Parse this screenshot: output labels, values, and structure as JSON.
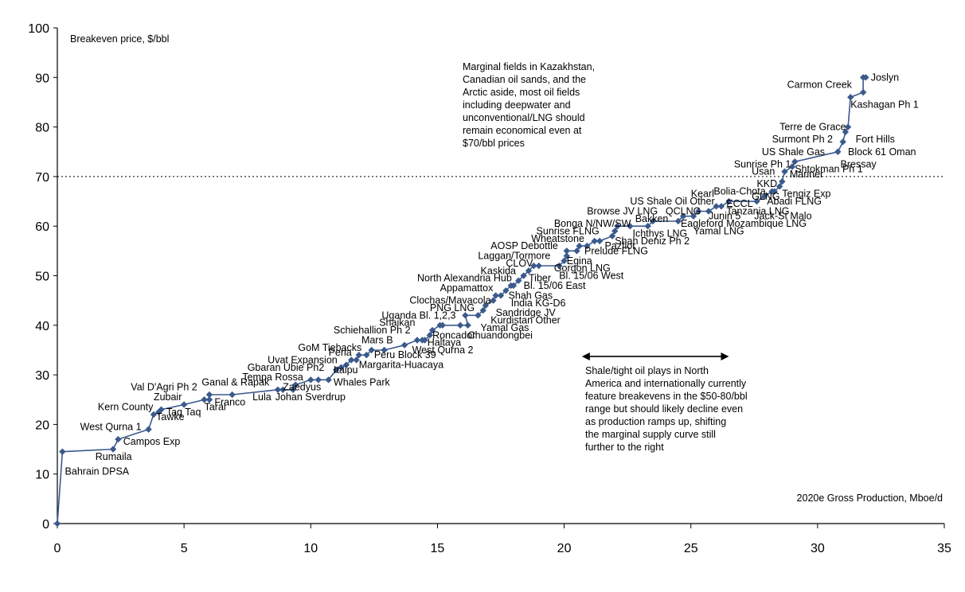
{
  "chart_data": {
    "type": "line",
    "ylabel": "Breakeven price, $/bbl",
    "xlabel": "2020e Gross Production, Mboe/d",
    "xlim": [
      0,
      35
    ],
    "ylim": [
      0,
      100
    ],
    "xticks": [
      "0",
      "5",
      "10",
      "15",
      "20",
      "25",
      "30",
      "35"
    ],
    "yticks": [
      "0",
      "10",
      "20",
      "30",
      "40",
      "50",
      "60",
      "70",
      "80",
      "90",
      "100"
    ],
    "grid": false,
    "reference_line": {
      "y": 70,
      "style": "dotted"
    },
    "series": [
      {
        "color": "#3b5a8c",
        "marker": "diamond",
        "points": [
          {
            "x": 0.0,
            "y": 0
          },
          {
            "x": 0.2,
            "y": 14.5
          },
          {
            "x": 2.2,
            "y": 15
          },
          {
            "x": 2.4,
            "y": 17
          },
          {
            "x": 3.6,
            "y": 19
          },
          {
            "x": 3.8,
            "y": 22
          },
          {
            "x": 4.0,
            "y": 22.5
          },
          {
            "x": 4.1,
            "y": 23
          },
          {
            "x": 5.0,
            "y": 24
          },
          {
            "x": 5.8,
            "y": 25
          },
          {
            "x": 6.0,
            "y": 25
          },
          {
            "x": 6.0,
            "y": 26
          },
          {
            "x": 6.9,
            "y": 26
          },
          {
            "x": 8.7,
            "y": 27
          },
          {
            "x": 8.9,
            "y": 27
          },
          {
            "x": 9.3,
            "y": 27
          },
          {
            "x": 9.4,
            "y": 28
          },
          {
            "x": 10.0,
            "y": 29
          },
          {
            "x": 10.3,
            "y": 29
          },
          {
            "x": 10.7,
            "y": 29
          },
          {
            "x": 11.0,
            "y": 31
          },
          {
            "x": 11.2,
            "y": 31.5
          },
          {
            "x": 11.4,
            "y": 32
          },
          {
            "x": 11.6,
            "y": 33
          },
          {
            "x": 11.8,
            "y": 33
          },
          {
            "x": 11.9,
            "y": 34
          },
          {
            "x": 12.2,
            "y": 34
          },
          {
            "x": 12.4,
            "y": 35
          },
          {
            "x": 12.9,
            "y": 35
          },
          {
            "x": 13.7,
            "y": 36
          },
          {
            "x": 14.2,
            "y": 37
          },
          {
            "x": 14.4,
            "y": 37
          },
          {
            "x": 14.5,
            "y": 37
          },
          {
            "x": 14.7,
            "y": 38
          },
          {
            "x": 14.8,
            "y": 39
          },
          {
            "x": 15.1,
            "y": 40
          },
          {
            "x": 15.2,
            "y": 40
          },
          {
            "x": 15.9,
            "y": 40
          },
          {
            "x": 16.2,
            "y": 40
          },
          {
            "x": 16.1,
            "y": 42
          },
          {
            "x": 16.6,
            "y": 42
          },
          {
            "x": 16.8,
            "y": 43
          },
          {
            "x": 16.9,
            "y": 44
          },
          {
            "x": 17.2,
            "y": 45
          },
          {
            "x": 17.3,
            "y": 46
          },
          {
            "x": 17.5,
            "y": 46
          },
          {
            "x": 17.7,
            "y": 47
          },
          {
            "x": 17.9,
            "y": 48
          },
          {
            "x": 18.0,
            "y": 48
          },
          {
            "x": 18.2,
            "y": 49
          },
          {
            "x": 18.4,
            "y": 50
          },
          {
            "x": 18.6,
            "y": 51
          },
          {
            "x": 18.8,
            "y": 52
          },
          {
            "x": 19.0,
            "y": 52
          },
          {
            "x": 19.8,
            "y": 52
          },
          {
            "x": 20.0,
            "y": 53
          },
          {
            "x": 20.1,
            "y": 54
          },
          {
            "x": 20.1,
            "y": 55
          },
          {
            "x": 20.5,
            "y": 55
          },
          {
            "x": 20.6,
            "y": 56
          },
          {
            "x": 20.9,
            "y": 56
          },
          {
            "x": 21.2,
            "y": 57
          },
          {
            "x": 21.4,
            "y": 57
          },
          {
            "x": 21.9,
            "y": 58
          },
          {
            "x": 22.0,
            "y": 59
          },
          {
            "x": 22.1,
            "y": 60
          },
          {
            "x": 22.6,
            "y": 60
          },
          {
            "x": 23.3,
            "y": 60
          },
          {
            "x": 23.5,
            "y": 61
          },
          {
            "x": 24.5,
            "y": 61
          },
          {
            "x": 24.7,
            "y": 62
          },
          {
            "x": 25.1,
            "y": 62
          },
          {
            "x": 25.3,
            "y": 63
          },
          {
            "x": 25.7,
            "y": 63
          },
          {
            "x": 26.0,
            "y": 64
          },
          {
            "x": 26.2,
            "y": 64
          },
          {
            "x": 26.5,
            "y": 65
          },
          {
            "x": 27.6,
            "y": 65
          },
          {
            "x": 27.9,
            "y": 66
          },
          {
            "x": 28.2,
            "y": 67
          },
          {
            "x": 28.3,
            "y": 67
          },
          {
            "x": 28.5,
            "y": 68
          },
          {
            "x": 28.6,
            "y": 69
          },
          {
            "x": 28.7,
            "y": 71
          },
          {
            "x": 29.0,
            "y": 72
          },
          {
            "x": 29.1,
            "y": 73
          },
          {
            "x": 30.8,
            "y": 75
          },
          {
            "x": 31.0,
            "y": 77
          },
          {
            "x": 31.1,
            "y": 79
          },
          {
            "x": 31.2,
            "y": 80
          },
          {
            "x": 31.3,
            "y": 86
          },
          {
            "x": 31.8,
            "y": 87
          },
          {
            "x": 31.8,
            "y": 90
          },
          {
            "x": 31.9,
            "y": 90
          }
        ]
      }
    ],
    "point_labels": [
      {
        "text": "Bahrain DPSA",
        "x": 0.3,
        "y": 10.5
      },
      {
        "text": "Rumaila",
        "x": 1.5,
        "y": 13.5
      },
      {
        "text": "Campos Exp",
        "x": 2.6,
        "y": 16.5
      },
      {
        "text": "West Qurna 1",
        "x": 0.9,
        "y": 19.5
      },
      {
        "text": "Tawke",
        "x": 3.9,
        "y": 21.5
      },
      {
        "text": "Kern County",
        "x": 1.6,
        "y": 23.5
      },
      {
        "text": "Taq Taq",
        "x": 4.3,
        "y": 22.5
      },
      {
        "text": "Zubair",
        "x": 3.8,
        "y": 25.5
      },
      {
        "text": "Val D'Agri Ph 2",
        "x": 2.9,
        "y": 27.5
      },
      {
        "text": "Taral",
        "x": 5.8,
        "y": 23.5
      },
      {
        "text": "Franco",
        "x": 6.2,
        "y": 24.5
      },
      {
        "text": "Ganal & Rapak",
        "x": 5.7,
        "y": 28.5
      },
      {
        "text": "Lula",
        "x": 7.7,
        "y": 25.5
      },
      {
        "text": "Johan Sverdrup",
        "x": 8.6,
        "y": 25.5
      },
      {
        "text": "Tempa Rossa",
        "x": 7.3,
        "y": 29.5
      },
      {
        "text": "Zaedyus",
        "x": 8.9,
        "y": 27.5
      },
      {
        "text": "Gbaran Ubie Ph2",
        "x": 7.5,
        "y": 31.5
      },
      {
        "text": "Whales Park",
        "x": 10.9,
        "y": 28.5
      },
      {
        "text": "Itaipu",
        "x": 10.9,
        "y": 31.0
      },
      {
        "text": "Uvat Expansion",
        "x": 8.3,
        "y": 33.0
      },
      {
        "text": "Margarita-Huacaya",
        "x": 11.9,
        "y": 32.0
      },
      {
        "text": "Perla",
        "x": 10.7,
        "y": 34.5
      },
      {
        "text": "GoM Tiebacks",
        "x": 9.5,
        "y": 35.5
      },
      {
        "text": "Peru Block 39",
        "x": 12.5,
        "y": 34.0
      },
      {
        "text": "Mars B",
        "x": 12.0,
        "y": 37.0
      },
      {
        "text": "West Qurna 2",
        "x": 14.0,
        "y": 35.0
      },
      {
        "text": "Haltaya",
        "x": 14.6,
        "y": 36.5
      },
      {
        "text": "Roncador",
        "x": 14.8,
        "y": 38.0
      },
      {
        "text": "Schiehallion Ph 2",
        "x": 10.9,
        "y": 39.0
      },
      {
        "text": "Chuandongbei",
        "x": 16.2,
        "y": 38.0
      },
      {
        "text": "Shaikan",
        "x": 12.7,
        "y": 40.5
      },
      {
        "text": "Yamal Gas",
        "x": 16.7,
        "y": 39.5
      },
      {
        "text": "Uganda Bl. 1,2,3",
        "x": 12.8,
        "y": 42.0
      },
      {
        "text": "Kurdistan Other",
        "x": 17.1,
        "y": 41.0
      },
      {
        "text": "PNG LNG",
        "x": 14.7,
        "y": 43.5
      },
      {
        "text": "Sandridge JV",
        "x": 17.3,
        "y": 42.5
      },
      {
        "text": "Clochas/Mavacola",
        "x": 13.9,
        "y": 45.0
      },
      {
        "text": "India KG-D6",
        "x": 17.9,
        "y": 44.5
      },
      {
        "text": "Shah Gas",
        "x": 17.8,
        "y": 46.0
      },
      {
        "text": "Appamattox",
        "x": 15.1,
        "y": 47.5
      },
      {
        "text": "Bl. 15/06 East",
        "x": 18.4,
        "y": 48.0
      },
      {
        "text": "North Alexandria Hub",
        "x": 14.2,
        "y": 49.5
      },
      {
        "text": "Tiber",
        "x": 18.6,
        "y": 49.5
      },
      {
        "text": "Bl. 15/06 West",
        "x": 19.8,
        "y": 50.0
      },
      {
        "text": "Kaskida",
        "x": 16.7,
        "y": 51.0
      },
      {
        "text": "Gorgon LNG",
        "x": 19.6,
        "y": 51.5
      },
      {
        "text": "CLOV",
        "x": 17.7,
        "y": 52.5
      },
      {
        "text": "Egina",
        "x": 20.1,
        "y": 53.0
      },
      {
        "text": "Laggan/Tormore",
        "x": 16.6,
        "y": 54.0
      },
      {
        "text": "Prelude FLNG",
        "x": 20.8,
        "y": 55.0
      },
      {
        "text": "AOSP Debottle",
        "x": 17.1,
        "y": 56.0
      },
      {
        "text": "Pazflor",
        "x": 21.6,
        "y": 56.0
      },
      {
        "text": "Wheatstone",
        "x": 18.7,
        "y": 57.5
      },
      {
        "text": "Shah Deniz Ph 2",
        "x": 22.0,
        "y": 57.0
      },
      {
        "text": "Sunrise FLNG",
        "x": 18.9,
        "y": 59.0
      },
      {
        "text": "Bonga N/NW/SW",
        "x": 19.6,
        "y": 60.5
      },
      {
        "text": "Ichthys LNG",
        "x": 22.7,
        "y": 58.5
      },
      {
        "text": "Bakken",
        "x": 22.8,
        "y": 61.5
      },
      {
        "text": "Browse JV LNG",
        "x": 20.9,
        "y": 63.0
      },
      {
        "text": "Yamal LNG",
        "x": 25.1,
        "y": 59.0
      },
      {
        "text": "Eagleford",
        "x": 24.6,
        "y": 60.5
      },
      {
        "text": "QCLNG",
        "x": 24.0,
        "y": 63.0
      },
      {
        "text": "Mozambique LNG",
        "x": 26.4,
        "y": 60.5
      },
      {
        "text": "Junin 5",
        "x": 25.7,
        "y": 62.0
      },
      {
        "text": "US Shale Oil Other",
        "x": 22.6,
        "y": 65.0
      },
      {
        "text": "Tanzania LNG",
        "x": 26.4,
        "y": 63.0
      },
      {
        "text": "Jack-St Malo",
        "x": 27.5,
        "y": 62.0
      },
      {
        "text": "ECCL",
        "x": 26.4,
        "y": 64.5
      },
      {
        "text": "Kearl",
        "x": 25.0,
        "y": 66.5
      },
      {
        "text": "GLNG",
        "x": 27.4,
        "y": 66.0
      },
      {
        "text": "Abadi FLNG",
        "x": 28.0,
        "y": 65.0
      },
      {
        "text": "Bolia-Chota",
        "x": 25.9,
        "y": 67.0
      },
      {
        "text": "Tengiz Exp",
        "x": 28.6,
        "y": 66.5
      },
      {
        "text": "KKD",
        "x": 27.6,
        "y": 68.5
      },
      {
        "text": "Mariner",
        "x": 28.9,
        "y": 70.5
      },
      {
        "text": "Usan",
        "x": 27.4,
        "y": 71.0
      },
      {
        "text": "Shtokman Ph 1",
        "x": 29.1,
        "y": 71.5
      },
      {
        "text": "Sunrise Ph 1",
        "x": 26.7,
        "y": 72.5
      },
      {
        "text": "Bressay",
        "x": 30.9,
        "y": 72.5
      },
      {
        "text": "US Shale Gas",
        "x": 27.8,
        "y": 75.0
      },
      {
        "text": "Block 61 Oman",
        "x": 31.2,
        "y": 75.0
      },
      {
        "text": "Surmont Ph 2",
        "x": 28.2,
        "y": 77.5
      },
      {
        "text": "Fort Hills",
        "x": 31.5,
        "y": 77.5
      },
      {
        "text": "Terre de Grace",
        "x": 28.5,
        "y": 80.0
      },
      {
        "text": "Kashagan Ph 1",
        "x": 31.3,
        "y": 84.5
      },
      {
        "text": "Carmon Creek",
        "x": 28.8,
        "y": 88.5
      },
      {
        "text": "Joslyn",
        "x": 32.1,
        "y": 90.0
      }
    ]
  },
  "annotations": {
    "top_note": "Marginal fields in Kazakhstan,\nCanadian oil sands, and the\nArctic aside, most oil fields\nincluding deepwater and\nunconventional/LNG should\nremain economical even at\n$70/bbl prices",
    "bottom_note": "Shale/tight oil plays in North\nAmerica and internationally currently\nfeature breakevens in the $50-80/bbl\nrange but should likely decline even\nas production ramps up, shifting\nthe marginal supply curve still\nfurther to the right",
    "arrow": {
      "x_from": 20.7,
      "x_to": 26.5,
      "y": 35
    }
  }
}
